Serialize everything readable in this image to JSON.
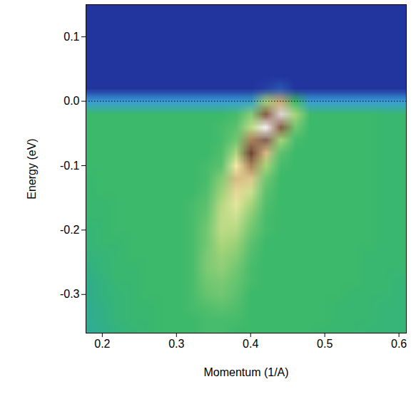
{
  "chart_data": {
    "type": "heatmap",
    "xlabel": "Momentum (1/A)",
    "ylabel": "Energy (eV)",
    "xlim": [
      0.178,
      0.61
    ],
    "ylim": [
      -0.36,
      0.15
    ],
    "xticks": [
      0.2,
      0.3,
      0.4,
      0.5,
      0.6
    ],
    "yticks": [
      0.1,
      {
        "value": 0,
        "label": "0.0"
      },
      -0.1,
      -0.2,
      -0.3
    ],
    "reference_line": 0,
    "color_range": [
      0,
      100
    ],
    "x": [
      0.18,
      0.2,
      0.22,
      0.24,
      0.26,
      0.28,
      0.3,
      0.32,
      0.34,
      0.36,
      0.38,
      0.4,
      0.42,
      0.44,
      0.46,
      0.48,
      0.5,
      0.52,
      0.54,
      0.56,
      0.58,
      0.6
    ],
    "y": [
      0.14,
      0.12,
      0.1,
      0.08,
      0.06,
      0.04,
      0.02,
      0.0,
      -0.02,
      -0.04,
      -0.06,
      -0.08,
      -0.1,
      -0.12,
      -0.14,
      -0.16,
      -0.18,
      -0.2,
      -0.22,
      -0.24,
      -0.26,
      -0.28,
      -0.3,
      -0.32,
      -0.34,
      -0.36
    ],
    "cells": [
      [
        10,
        10,
        10,
        10,
        10,
        10,
        10,
        10,
        10,
        10,
        10,
        10,
        10,
        10,
        10,
        10,
        10,
        10,
        10,
        10,
        10,
        10
      ],
      [
        10,
        10,
        10,
        10,
        10,
        10,
        10,
        10,
        10,
        10,
        10,
        10,
        10,
        10,
        10,
        10,
        10,
        10,
        10,
        10,
        10,
        10
      ],
      [
        10,
        10,
        10,
        10,
        10,
        10,
        10,
        10,
        10,
        10,
        10,
        10,
        10,
        10,
        10,
        10,
        10,
        10,
        10,
        10,
        10,
        10
      ],
      [
        10,
        10,
        10,
        10,
        10,
        10,
        10,
        10,
        10,
        10,
        10,
        10,
        10,
        10,
        10,
        10,
        10,
        10,
        10,
        10,
        10,
        10
      ],
      [
        10,
        10,
        10,
        10,
        10,
        10,
        10,
        10,
        10,
        10,
        10,
        10,
        10,
        10,
        10,
        10,
        10,
        10,
        10,
        10,
        10,
        10
      ],
      [
        10,
        10,
        10,
        10,
        10,
        10,
        10,
        10,
        10,
        10,
        10,
        10,
        10,
        10,
        10,
        10,
        10,
        10,
        10,
        10,
        10,
        10
      ],
      [
        10,
        10,
        10,
        10,
        10,
        10,
        10,
        10,
        10,
        10,
        10,
        10,
        12,
        16,
        10,
        10,
        10,
        10,
        10,
        10,
        10,
        10
      ],
      [
        28,
        28,
        28,
        28,
        28,
        28,
        28,
        28,
        28,
        28,
        28,
        30,
        55,
        75,
        45,
        28,
        28,
        28,
        28,
        28,
        28,
        28
      ],
      [
        45,
        45,
        45,
        45,
        45,
        45,
        45,
        45,
        45,
        45,
        46,
        52,
        85,
        98,
        55,
        45,
        45,
        45,
        45,
        45,
        44,
        44
      ],
      [
        45,
        45,
        45,
        45,
        45,
        45,
        45,
        45,
        45,
        46,
        48,
        58,
        100,
        85,
        50,
        45,
        45,
        45,
        45,
        45,
        44,
        44
      ],
      [
        45,
        45,
        45,
        45,
        45,
        45,
        45,
        45,
        45,
        46,
        50,
        80,
        90,
        55,
        46,
        45,
        45,
        45,
        45,
        45,
        44,
        44
      ],
      [
        45,
        45,
        45,
        45,
        45,
        45,
        45,
        45,
        45,
        47,
        56,
        88,
        72,
        48,
        45,
        45,
        45,
        45,
        45,
        45,
        44,
        44
      ],
      [
        45,
        45,
        45,
        45,
        45,
        45,
        45,
        45,
        46,
        48,
        65,
        80,
        55,
        46,
        45,
        45,
        45,
        45,
        45,
        45,
        44,
        44
      ],
      [
        44,
        45,
        45,
        45,
        45,
        45,
        45,
        45,
        46,
        52,
        72,
        70,
        50,
        45,
        45,
        45,
        45,
        45,
        45,
        45,
        44,
        44
      ],
      [
        44,
        45,
        45,
        45,
        45,
        45,
        45,
        45,
        47,
        54,
        68,
        60,
        48,
        45,
        45,
        45,
        45,
        45,
        45,
        45,
        44,
        44
      ],
      [
        44,
        44,
        45,
        45,
        45,
        45,
        45,
        46,
        48,
        57,
        63,
        55,
        47,
        45,
        45,
        45,
        45,
        45,
        45,
        45,
        44,
        44
      ],
      [
        44,
        44,
        45,
        45,
        45,
        45,
        45,
        46,
        49,
        58,
        60,
        52,
        46,
        45,
        45,
        45,
        45,
        45,
        45,
        45,
        44,
        44
      ],
      [
        43,
        44,
        45,
        45,
        45,
        45,
        45,
        46,
        50,
        58,
        57,
        50,
        46,
        45,
        45,
        45,
        45,
        45,
        45,
        45,
        44,
        44
      ],
      [
        43,
        44,
        44,
        45,
        45,
        45,
        45,
        46,
        50,
        56,
        54,
        48,
        45,
        45,
        45,
        45,
        45,
        45,
        45,
        45,
        44,
        44
      ],
      [
        42,
        43,
        44,
        45,
        45,
        45,
        45,
        46,
        51,
        54,
        52,
        47,
        45,
        45,
        45,
        45,
        45,
        45,
        45,
        44,
        44,
        44
      ],
      [
        41,
        43,
        44,
        44,
        45,
        45,
        45,
        46,
        51,
        53,
        50,
        46,
        45,
        45,
        45,
        45,
        45,
        45,
        45,
        44,
        44,
        44
      ],
      [
        40,
        42,
        44,
        44,
        45,
        45,
        45,
        46,
        50,
        51,
        49,
        46,
        45,
        45,
        45,
        45,
        45,
        45,
        45,
        44,
        44,
        43
      ],
      [
        40,
        42,
        43,
        44,
        45,
        45,
        45,
        46,
        49,
        50,
        48,
        45,
        45,
        45,
        45,
        45,
        45,
        45,
        44,
        44,
        44,
        43
      ],
      [
        39,
        41,
        43,
        44,
        44,
        45,
        45,
        46,
        47,
        48,
        47,
        45,
        45,
        45,
        45,
        45,
        45,
        44,
        44,
        44,
        43,
        43
      ],
      [
        39,
        41,
        43,
        44,
        44,
        45,
        45,
        45,
        46,
        46,
        46,
        45,
        45,
        45,
        45,
        45,
        45,
        44,
        44,
        44,
        43,
        43
      ],
      [
        38,
        40,
        42,
        43,
        44,
        45,
        45,
        45,
        46,
        46,
        45,
        45,
        45,
        45,
        45,
        45,
        44,
        44,
        44,
        43,
        43,
        43
      ]
    ]
  }
}
